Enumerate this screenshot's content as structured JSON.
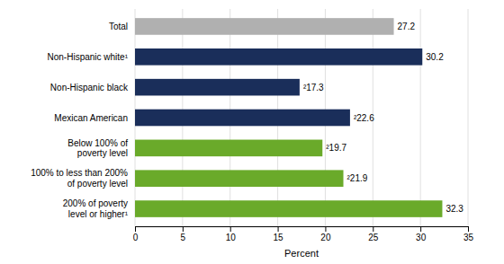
{
  "chart_data": {
    "type": "bar",
    "orientation": "horizontal",
    "categories": [
      "200% of poverty\nlevel or higher¹",
      "100% to less than 200%\nof poverty level",
      "Below 100% of\npoverty level",
      "Mexican American",
      "Non-Hispanic black",
      "Non-Hispanic white¹",
      "Total"
    ],
    "values": [
      32.3,
      21.9,
      19.7,
      22.6,
      17.3,
      30.2,
      27.2
    ],
    "value_labels": [
      "32.3",
      "²21.9",
      "²19.7",
      "²22.6",
      "²17.3",
      "30.2",
      "27.2"
    ],
    "data_labels": true,
    "colors": [
      "#6aaa2a",
      "#6aaa2a",
      "#6aaa2a",
      "#1a2e5a",
      "#1a2e5a",
      "#1a2e5a",
      "#b0b0b0"
    ],
    "xlabel": "Percent",
    "xlim": [
      0,
      35
    ],
    "xticks": [
      0,
      5,
      10,
      15,
      20,
      25,
      30,
      35
    ],
    "grid": true
  }
}
